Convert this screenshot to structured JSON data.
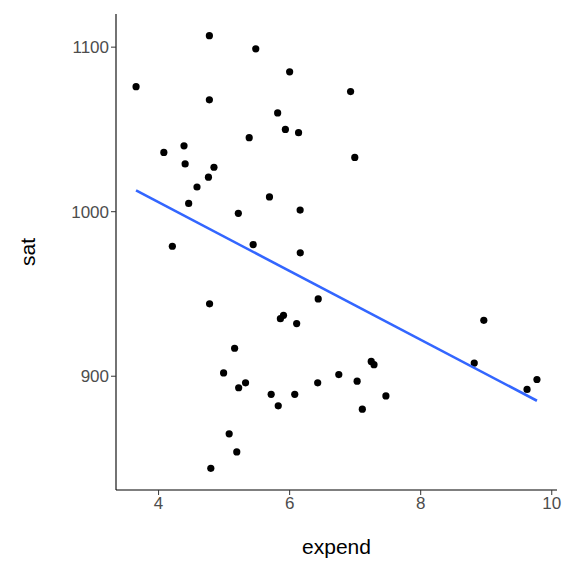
{
  "chart_data": {
    "type": "scatter",
    "x_label": "expend",
    "y_label": "sat",
    "x": [
      4.405,
      8.963,
      4.778,
      4.459,
      4.992,
      5.443,
      8.817,
      7.03,
      5.718,
      5.193,
      6.078,
      4.21,
      6.136,
      5.826,
      5.483,
      5.817,
      5.217,
      4.761,
      6.428,
      7.245,
      7.287,
      6.994,
      6.0,
      4.08,
      5.383,
      5.692,
      5.935,
      5.16,
      5.859,
      9.774,
      4.586,
      9.623,
      5.077,
      4.775,
      6.162,
      4.845,
      6.436,
      7.109,
      7.469,
      4.797,
      4.775,
      4.388,
      5.222,
      3.656,
      6.75,
      5.327,
      5.906,
      6.107,
      6.93,
      6.16
    ],
    "values": [
      1029,
      934,
      944,
      1005,
      902,
      980,
      908,
      897,
      889,
      854,
      889,
      979,
      1048,
      882,
      1099,
      1060,
      999,
      1021,
      896,
      909,
      907,
      1033,
      1085,
      1036,
      1045,
      1009,
      1050,
      917,
      935,
      898,
      1015,
      892,
      865,
      1107,
      975,
      1027,
      947,
      880,
      888,
      844,
      1068,
      1040,
      893,
      1076,
      901,
      896,
      937,
      932,
      1073,
      1001
    ],
    "color": "#000000",
    "marker": "circle",
    "trend_line": {
      "x": [
        3.656,
        9.774
      ],
      "values": [
        1012.9,
        885.1
      ],
      "color": "#3366ff",
      "line_style": "solid"
    },
    "xlim": [
      3.35,
      10.08
    ],
    "ylim": [
      830.85,
      1120.15
    ],
    "xticks": [
      4,
      6,
      8,
      10
    ],
    "yticks": [
      900,
      1000,
      1100
    ],
    "grid": false
  }
}
